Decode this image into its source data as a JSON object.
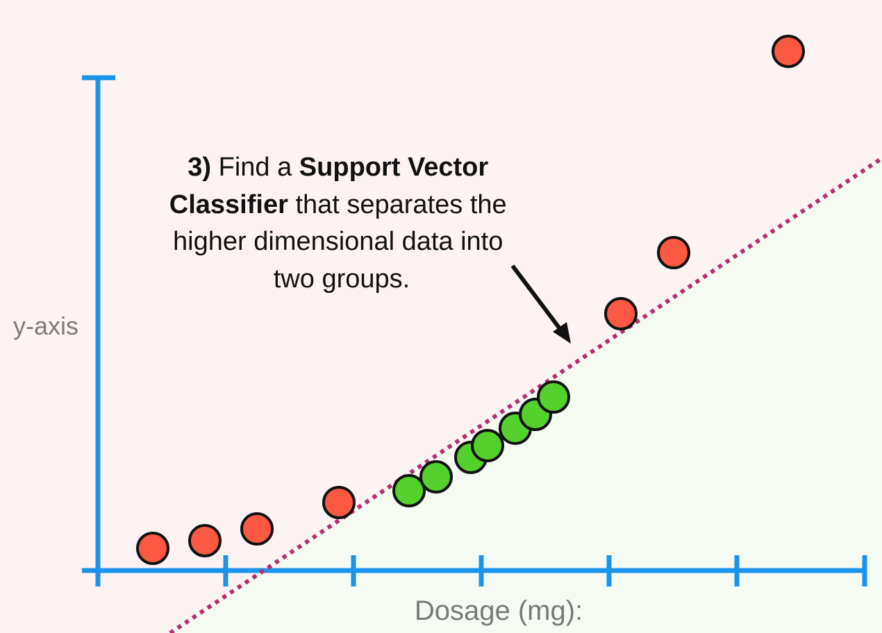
{
  "y_axis_label": "y-axis",
  "x_axis_label": "Dosage (mg):",
  "annotation": {
    "lines": [
      [
        "3)",
        "Find a",
        "Support Vector"
      ],
      [
        "Classifier",
        "that separates the"
      ],
      [
        "higher dimensional data into"
      ],
      [
        "two groups."
      ]
    ]
  }
}
